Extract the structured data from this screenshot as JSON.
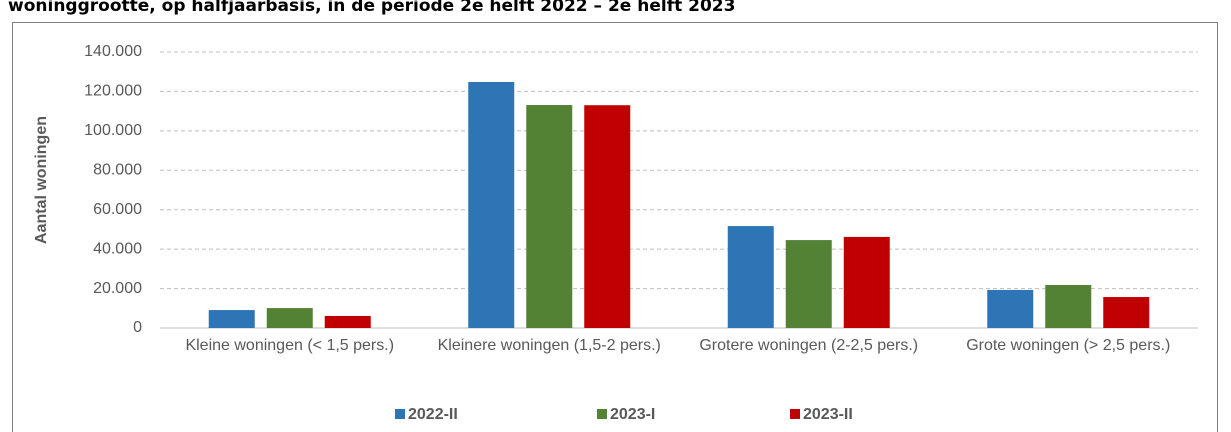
{
  "chart_data": {
    "type": "bar",
    "title": "woninggrootte, op halfjaarbasis, in de periode 2e helft 2022 – 2e helft 2023",
    "y_label": "Aantal woningen",
    "categories": [
      "Kleine woningen (< 1,5 pers.)",
      "Kleinere woningen (1,5-2 pers.)",
      "Grotere woningen (2-2,5 pers.)",
      "Grote woningen (> 2,5 pers.)"
    ],
    "series": [
      {
        "name": "2022-II",
        "color": "#2e75b6",
        "values": [
          9100,
          124800,
          51700,
          19300
        ]
      },
      {
        "name": "2023-I",
        "color": "#548235",
        "values": [
          10100,
          113100,
          44600,
          21800
        ]
      },
      {
        "name": "2023-II",
        "color": "#c00000",
        "values": [
          6100,
          113000,
          46200,
          15700
        ]
      }
    ],
    "ylim": [
      0,
      140000
    ],
    "yticks": [
      0,
      {
        "value": 20000,
        "label": "20.000"
      },
      {
        "value": 40000,
        "label": "40.000"
      },
      {
        "value": 60000,
        "label": "60.000"
      },
      {
        "value": 80000,
        "label": "80.000"
      },
      {
        "value": 100000,
        "label": "100.000"
      },
      {
        "value": 120000,
        "label": "120.000"
      },
      {
        "value": 140000,
        "label": "140.000"
      }
    ],
    "grid": true,
    "legend": "bottom"
  }
}
